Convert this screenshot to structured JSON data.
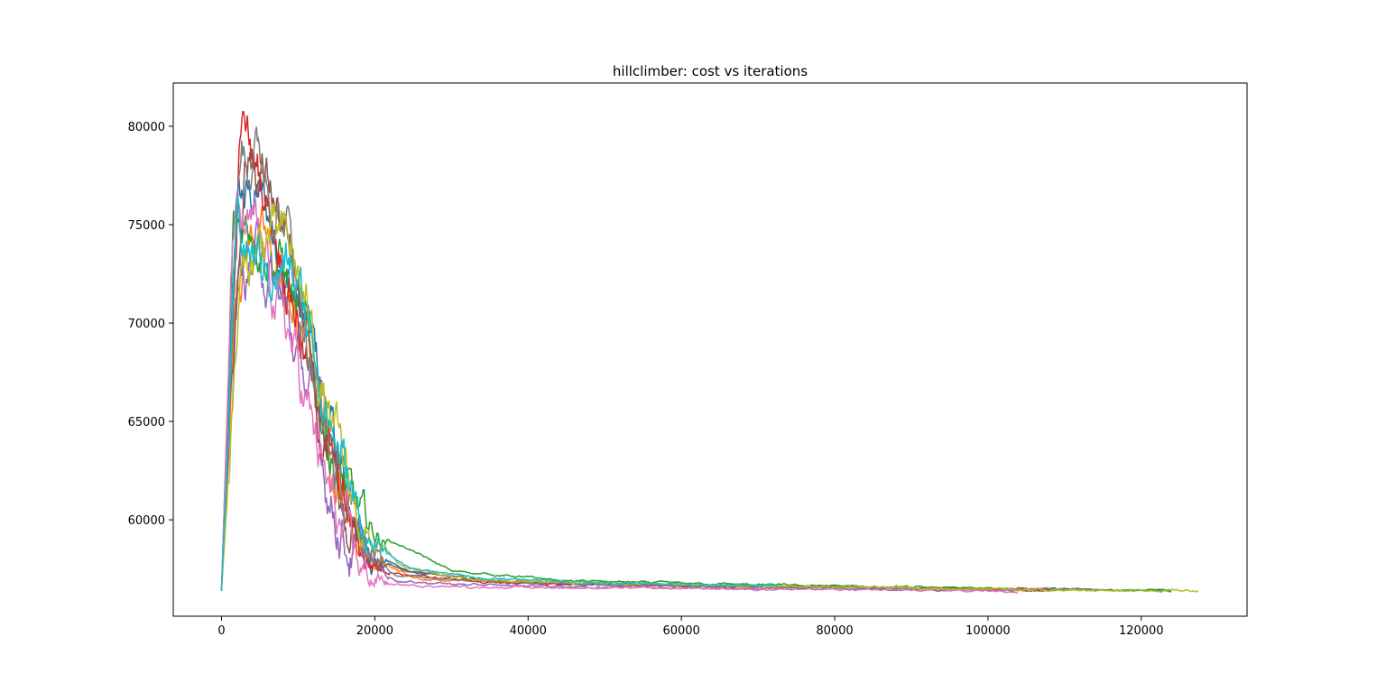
{
  "chart_data": {
    "type": "line",
    "title": "hillclimber: cost vs iterations",
    "xlabel": "",
    "ylabel": "",
    "xlim": [
      -6300,
      133800
    ],
    "ylim": [
      55100,
      82200
    ],
    "grid": false,
    "legend": "none",
    "x_ticks": [
      0,
      20000,
      40000,
      60000,
      80000,
      100000,
      120000
    ],
    "y_ticks": [
      60000,
      65000,
      70000,
      75000,
      80000
    ],
    "colors": [
      "#1f77b4",
      "#ff7f0e",
      "#2ca02c",
      "#d62728",
      "#9467bd",
      "#8c564b",
      "#e377c2",
      "#7f7f7f",
      "#bcbd22",
      "#17becf"
    ],
    "series": [
      {
        "x": [
          0,
          2000,
          5000,
          9000,
          12000,
          15000,
          17000,
          20000,
          25000,
          35000,
          50000,
          70000,
          90000,
          110000,
          124000
        ],
        "values": [
          56400,
          76000,
          76500,
          72000,
          68500,
          63000,
          60000,
          58200,
          57300,
          56900,
          56700,
          56600,
          56500,
          56450,
          56400
        ]
      },
      {
        "x": [
          0,
          2000,
          4500,
          8500,
          12500,
          15000,
          17500,
          20000,
          26000,
          40000,
          55000,
          75000,
          95000,
          112000
        ],
        "values": [
          56400,
          73000,
          75000,
          71000,
          67000,
          62500,
          59500,
          57800,
          57000,
          56800,
          56700,
          56600,
          56500,
          56450
        ]
      },
      {
        "x": [
          0,
          1500,
          4000,
          8000,
          11500,
          14500,
          17000,
          19500,
          24000,
          30000,
          45000,
          70000,
          100000,
          124000
        ],
        "values": [
          56400,
          74500,
          75500,
          73000,
          68000,
          63500,
          60500,
          59300,
          58600,
          57400,
          56900,
          56700,
          56500,
          56400
        ]
      },
      {
        "x": [
          0,
          2500,
          6000,
          9500,
          12000,
          14500,
          16500,
          19000,
          24000,
          35000,
          50000,
          70000,
          90000,
          108000
        ],
        "values": [
          56400,
          80000,
          76500,
          71500,
          66000,
          62500,
          59800,
          58000,
          57200,
          56800,
          56700,
          56600,
          56500,
          56450
        ]
      },
      {
        "x": [
          0,
          2000,
          5000,
          8500,
          11500,
          14000,
          16500,
          19000,
          23000,
          32000,
          48000,
          68000,
          88000,
          106000
        ],
        "values": [
          56400,
          72000,
          73500,
          70000,
          66500,
          61500,
          58800,
          57600,
          56900,
          56700,
          56600,
          56500,
          56450,
          56400
        ]
      },
      {
        "x": [
          0,
          3000,
          6500,
          9000,
          11500,
          14000,
          16500,
          19000,
          24000,
          36000,
          52000,
          72000,
          92000,
          110000
        ],
        "values": [
          56400,
          79000,
          77000,
          72500,
          67500,
          63000,
          60000,
          58300,
          57400,
          56900,
          56700,
          56600,
          56500,
          56450
        ]
      },
      {
        "x": [
          0,
          1500,
          4500,
          8000,
          11000,
          13500,
          16000,
          18500,
          22500,
          30000,
          44000,
          64000,
          84000,
          104000
        ],
        "values": [
          56400,
          75000,
          74000,
          70500,
          66000,
          61800,
          58700,
          57300,
          56700,
          56600,
          56550,
          56500,
          56450,
          56400
        ]
      },
      {
        "x": [
          0,
          2500,
          5500,
          8500,
          11000,
          13500,
          16000,
          18500,
          23000,
          34000,
          50000,
          70000,
          92000,
          115000
        ],
        "values": [
          56400,
          79500,
          78000,
          75000,
          70000,
          64500,
          60800,
          58500,
          57200,
          56900,
          56700,
          56600,
          56500,
          56450
        ]
      },
      {
        "x": [
          0,
          2500,
          6000,
          9000,
          11500,
          14000,
          16500,
          19000,
          23500,
          32000,
          46000,
          66000,
          86000,
          106000,
          127500
        ],
        "values": [
          56400,
          72000,
          74500,
          73500,
          70000,
          65000,
          61500,
          59000,
          57600,
          57000,
          56800,
          56650,
          56550,
          56450,
          56400
        ]
      },
      {
        "x": [
          0,
          2000,
          5000,
          9000,
          12000,
          15000,
          17500,
          20000,
          25000,
          35000,
          50000,
          65000,
          72500
        ],
        "values": [
          56400,
          74500,
          73000,
          72500,
          69000,
          64000,
          60500,
          58500,
          57500,
          57000,
          56800,
          56700,
          56700
        ]
      }
    ]
  }
}
